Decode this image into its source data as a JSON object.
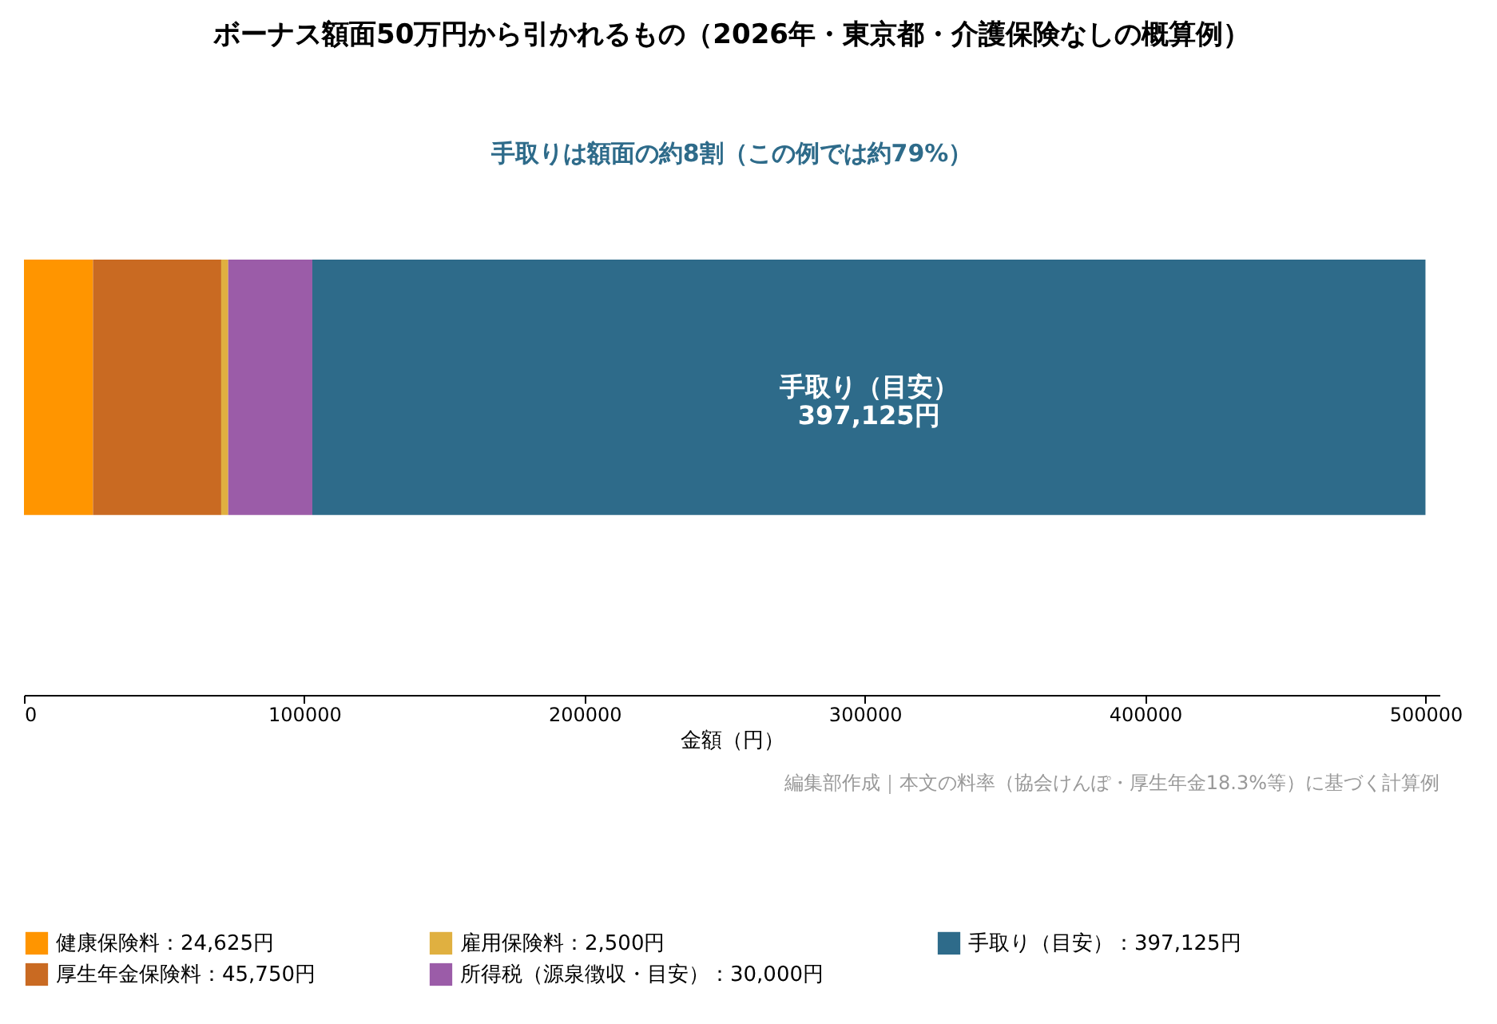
{
  "chart_data": {
    "type": "bar",
    "orientation": "horizontal",
    "stacked": true,
    "title": "ボーナス額面50万円から引かれるもの（2026年・東京都・介護保険なしの概算例）",
    "subtitle": "手取りは額面の約8割（この例では約79%）",
    "xlabel": "金額（円）",
    "categories": [
      null
    ],
    "series": [
      {
        "name": "健康保険料：24,625円",
        "color": "#ff9500",
        "values": [
          24625
        ]
      },
      {
        "name": "厚生年金保険料：45,750円",
        "color": "#c96a22",
        "values": [
          45750
        ]
      },
      {
        "name": "雇用保険料：2,500円",
        "color": "#e0b040",
        "values": [
          2500
        ]
      },
      {
        "name": "所得税（源泉徴収・目安）：30,000円",
        "color": "#9b5ca8",
        "values": [
          30000
        ]
      },
      {
        "name": "手取り（目安）：397,125円",
        "color": "#2e6b8a",
        "values": [
          397125
        ],
        "value_labels": [
          "手取り（目安）\n397,125円"
        ]
      }
    ],
    "xlim": [
      0,
      505000
    ],
    "xticks": [
      0,
      100000,
      200000,
      300000,
      400000,
      500000
    ],
    "annotations": [
      "編集部作成｜本文の料率（協会けんぽ・厚生年金18.3%等）に基づく計算例"
    ],
    "legend": "bottom",
    "tick_labels": "x",
    "grid": false
  }
}
